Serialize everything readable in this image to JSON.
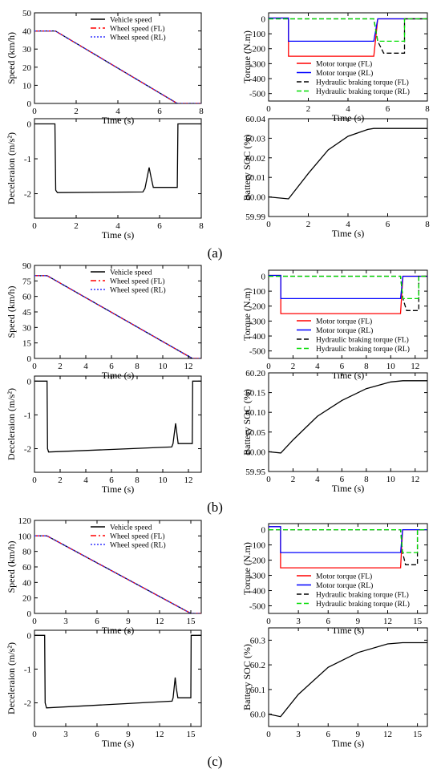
{
  "figure": {
    "panel_labels": [
      "(a)",
      "(b)",
      "(c)"
    ]
  },
  "chart_data": [
    {
      "id": "a-speed",
      "type": "line",
      "xlabel": "Time (s)",
      "ylabel": "Speed (km/h)",
      "xlim": [
        0,
        8
      ],
      "ylim": [
        0,
        50
      ],
      "xticks": [
        0,
        2,
        4,
        6,
        8
      ],
      "yticks": [
        0,
        10,
        20,
        30,
        40,
        50
      ],
      "legend_position": "top-right",
      "series": [
        {
          "name": "Vehicle speed",
          "color": "#000000",
          "dash": "solid",
          "x": [
            0,
            1.0,
            6.85,
            8
          ],
          "y": [
            40,
            40,
            0,
            0
          ]
        },
        {
          "name": "Wheel speed (FL)",
          "color": "#ff0000",
          "dash": "dashdot",
          "x": [
            0,
            1.0,
            6.85,
            8
          ],
          "y": [
            40,
            40,
            0,
            0
          ]
        },
        {
          "name": "Wheel speed (RL)",
          "color": "#3333ff",
          "dash": "dot",
          "x": [
            0,
            1.0,
            6.85,
            8
          ],
          "y": [
            40,
            40,
            0,
            0
          ]
        }
      ]
    },
    {
      "id": "a-torque",
      "type": "line",
      "xlabel": "Time (s)",
      "ylabel": "Torque (N.m)",
      "xlim": [
        0,
        8
      ],
      "ylim": [
        -550,
        40
      ],
      "xticks": [
        0,
        2,
        4,
        6,
        8
      ],
      "yticks": [
        0,
        -100,
        -200,
        -300,
        -400,
        -500
      ],
      "legend_position": "bottom-right",
      "series": [
        {
          "name": "Motor torque (FL)",
          "color": "#ff0000",
          "dash": "solid",
          "x": [
            0,
            1.0,
            1.0,
            5.3,
            5.5,
            8
          ],
          "y": [
            5,
            5,
            -250,
            -250,
            0,
            0
          ]
        },
        {
          "name": "Motor torque (RL)",
          "color": "#0000ff",
          "dash": "solid",
          "x": [
            0,
            1.0,
            1.0,
            5.3,
            5.5,
            8
          ],
          "y": [
            5,
            5,
            -150,
            -150,
            0,
            0
          ]
        },
        {
          "name": "Hydraulic braking torque (FL)",
          "color": "#000000",
          "dash": "dash",
          "x": [
            0,
            5.3,
            5.5,
            5.8,
            6.85,
            6.85,
            8
          ],
          "y": [
            0,
            0,
            -150,
            -230,
            -230,
            0,
            0
          ]
        },
        {
          "name": "Hydraulic braking torque (RL)",
          "color": "#00dd00",
          "dash": "dash",
          "x": [
            0,
            5.3,
            5.5,
            6.85,
            6.85,
            8
          ],
          "y": [
            0,
            0,
            -150,
            -150,
            0,
            0
          ]
        }
      ]
    },
    {
      "id": "a-decel",
      "type": "line",
      "xlabel": "Time (s)",
      "ylabel": "Deceleraion (m/s²)",
      "xlim": [
        0,
        8
      ],
      "ylim": [
        -2.7,
        0.15
      ],
      "xticks": [
        0,
        2,
        4,
        6,
        8
      ],
      "yticks": [
        0,
        -1,
        -2
      ],
      "series": [
        {
          "name": "",
          "color": "#000000",
          "dash": "solid",
          "x": [
            0,
            0.98,
            1.02,
            1.1,
            5.2,
            5.3,
            5.5,
            5.6,
            5.7,
            6.85,
            6.88,
            8
          ],
          "y": [
            0,
            0,
            -1.9,
            -1.97,
            -1.95,
            -1.85,
            -1.25,
            -1.55,
            -1.82,
            -1.82,
            0,
            0
          ]
        }
      ]
    },
    {
      "id": "a-soc",
      "type": "line",
      "xlabel": "Time (s)",
      "ylabel": "Battery SOC (%)",
      "xlim": [
        0,
        8
      ],
      "ylim": [
        59.99,
        60.04
      ],
      "xticks": [
        0,
        2,
        4,
        6,
        8
      ],
      "yticks": [
        59.99,
        60.0,
        60.01,
        60.02,
        60.03,
        60.04
      ],
      "series": [
        {
          "name": "",
          "color": "#000000",
          "dash": "solid",
          "x": [
            0,
            1.0,
            2,
            3,
            4,
            5,
            5.3,
            6,
            7,
            8
          ],
          "y": [
            60.0,
            59.999,
            60.012,
            60.024,
            60.031,
            60.0345,
            60.035,
            60.035,
            60.035,
            60.035
          ]
        }
      ]
    },
    {
      "id": "b-speed",
      "type": "line",
      "xlabel": "Time (s)",
      "ylabel": "Speed (km/h)",
      "xlim": [
        0,
        13
      ],
      "ylim": [
        0,
        90
      ],
      "xticks": [
        0,
        2,
        4,
        6,
        8,
        10,
        12
      ],
      "yticks": [
        0,
        15,
        30,
        45,
        60,
        75,
        90
      ],
      "legend_position": "top-right",
      "series": [
        {
          "name": "Vehicle speed",
          "color": "#000000",
          "dash": "solid",
          "x": [
            0,
            1.0,
            12.3,
            13
          ],
          "y": [
            80,
            80,
            0,
            0
          ]
        },
        {
          "name": "Wheel speed (FL)",
          "color": "#ff0000",
          "dash": "dashdot",
          "x": [
            0,
            1.0,
            12.3,
            13
          ],
          "y": [
            80,
            80,
            0,
            0
          ]
        },
        {
          "name": "Wheel speed (RL)",
          "color": "#3333ff",
          "dash": "dot",
          "x": [
            0,
            1.0,
            12.3,
            13
          ],
          "y": [
            80,
            80,
            0,
            0
          ]
        }
      ]
    },
    {
      "id": "b-torque",
      "type": "line",
      "xlabel": "Time (s)",
      "ylabel": "Torque (N.m)",
      "xlim": [
        0,
        13
      ],
      "ylim": [
        -550,
        40
      ],
      "xticks": [
        0,
        2,
        4,
        6,
        8,
        10,
        12
      ],
      "yticks": [
        0,
        -100,
        -200,
        -300,
        -400,
        -500
      ],
      "legend_position": "bottom-right",
      "series": [
        {
          "name": "Motor torque (FL)",
          "color": "#ff0000",
          "dash": "solid",
          "x": [
            0,
            1.0,
            1.0,
            10.8,
            11.0,
            13
          ],
          "y": [
            5,
            5,
            -250,
            -250,
            0,
            0
          ]
        },
        {
          "name": "Motor torque (RL)",
          "color": "#0000ff",
          "dash": "solid",
          "x": [
            0,
            1.0,
            1.0,
            10.8,
            11.0,
            13
          ],
          "y": [
            5,
            5,
            -150,
            -150,
            0,
            0
          ]
        },
        {
          "name": "Hydraulic braking torque (FL)",
          "color": "#000000",
          "dash": "dash",
          "x": [
            0,
            10.8,
            11.0,
            11.3,
            12.3,
            12.3,
            13
          ],
          "y": [
            0,
            0,
            -150,
            -230,
            -230,
            0,
            0
          ]
        },
        {
          "name": "Hydraulic braking torque (RL)",
          "color": "#00dd00",
          "dash": "dash",
          "x": [
            0,
            10.8,
            11.0,
            12.3,
            12.3,
            13
          ],
          "y": [
            0,
            0,
            -150,
            -150,
            0,
            0
          ]
        }
      ]
    },
    {
      "id": "b-decel",
      "type": "line",
      "xlabel": "Time (s)",
      "ylabel": "Deceleraion (m/s²)",
      "xlim": [
        0,
        13
      ],
      "ylim": [
        -2.7,
        0.15
      ],
      "xticks": [
        0,
        2,
        4,
        6,
        8,
        10,
        12
      ],
      "yticks": [
        0,
        -1,
        -2
      ],
      "series": [
        {
          "name": "",
          "color": "#000000",
          "dash": "solid",
          "x": [
            0,
            0.98,
            1.02,
            1.1,
            10.7,
            10.8,
            11.0,
            11.1,
            11.2,
            12.3,
            12.33,
            13
          ],
          "y": [
            0,
            0,
            -2.0,
            -2.1,
            -1.95,
            -1.85,
            -1.25,
            -1.55,
            -1.85,
            -1.85,
            0,
            0
          ]
        }
      ]
    },
    {
      "id": "b-soc",
      "type": "line",
      "xlabel": "Time (s)",
      "ylabel": "Battery SOC (%)",
      "xlim": [
        0,
        13
      ],
      "ylim": [
        59.95,
        60.2
      ],
      "xticks": [
        0,
        2,
        4,
        6,
        8,
        10,
        12
      ],
      "yticks": [
        59.95,
        60.0,
        60.05,
        60.1,
        60.15,
        60.2
      ],
      "series": [
        {
          "name": "",
          "color": "#000000",
          "dash": "solid",
          "x": [
            0,
            1.0,
            2,
            4,
            6,
            8,
            10,
            11,
            12,
            13
          ],
          "y": [
            60.0,
            59.997,
            60.03,
            60.09,
            60.13,
            60.16,
            60.177,
            60.18,
            60.18,
            60.18
          ]
        }
      ]
    },
    {
      "id": "c-speed",
      "type": "line",
      "xlabel": "Time (s)",
      "ylabel": "Speed (km/h)",
      "xlim": [
        0,
        16
      ],
      "ylim": [
        0,
        120
      ],
      "xticks": [
        0,
        3,
        6,
        9,
        12,
        15
      ],
      "yticks": [
        0,
        20,
        40,
        60,
        80,
        100,
        120
      ],
      "legend_position": "top-right",
      "series": [
        {
          "name": "Vehicle speed",
          "color": "#000000",
          "dash": "solid",
          "x": [
            0,
            1.2,
            15.0,
            16
          ],
          "y": [
            100,
            100,
            0,
            0
          ]
        },
        {
          "name": "Wheel speed (FL)",
          "color": "#ff0000",
          "dash": "dashdot",
          "x": [
            0,
            1.2,
            15.0,
            16
          ],
          "y": [
            100,
            100,
            0,
            0
          ]
        },
        {
          "name": "Wheel speed (RL)",
          "color": "#3333ff",
          "dash": "dot",
          "x": [
            0,
            1.2,
            15.0,
            16
          ],
          "y": [
            100,
            100,
            0,
            0
          ]
        }
      ]
    },
    {
      "id": "c-torque",
      "type": "line",
      "xlabel": "Time (s)",
      "ylabel": "Torque (N.m)",
      "xlim": [
        0,
        16
      ],
      "ylim": [
        -550,
        40
      ],
      "xticks": [
        0,
        3,
        6,
        9,
        12,
        15
      ],
      "yticks": [
        0,
        -100,
        -200,
        -300,
        -400,
        -500
      ],
      "legend_position": "bottom-right",
      "series": [
        {
          "name": "Motor torque (FL)",
          "color": "#ff0000",
          "dash": "solid",
          "x": [
            0,
            1.2,
            1.2,
            13.3,
            13.5,
            16
          ],
          "y": [
            20,
            20,
            -250,
            -250,
            0,
            0
          ]
        },
        {
          "name": "Motor torque (RL)",
          "color": "#0000ff",
          "dash": "solid",
          "x": [
            0,
            1.2,
            1.2,
            13.3,
            13.5,
            16
          ],
          "y": [
            20,
            20,
            -150,
            -150,
            0,
            0
          ]
        },
        {
          "name": "Hydraulic braking torque (FL)",
          "color": "#000000",
          "dash": "dash",
          "x": [
            0,
            13.3,
            13.5,
            13.8,
            15.0,
            15.0,
            16
          ],
          "y": [
            0,
            0,
            -150,
            -230,
            -230,
            0,
            0
          ]
        },
        {
          "name": "Hydraulic braking torque (RL)",
          "color": "#00dd00",
          "dash": "dash",
          "x": [
            0,
            13.3,
            13.5,
            15.0,
            15.0,
            16
          ],
          "y": [
            0,
            0,
            -150,
            -150,
            0,
            0
          ]
        }
      ]
    },
    {
      "id": "c-decel",
      "type": "line",
      "xlabel": "Time (s)",
      "ylabel": "Deceleraion (m/s²)",
      "xlim": [
        0,
        16
      ],
      "ylim": [
        -2.7,
        0.15
      ],
      "xticks": [
        0,
        3,
        6,
        9,
        12,
        15
      ],
      "yticks": [
        0,
        -1,
        -2
      ],
      "series": [
        {
          "name": "",
          "color": "#000000",
          "dash": "solid",
          "x": [
            0,
            0.98,
            1.02,
            1.15,
            13.2,
            13.3,
            13.5,
            13.6,
            13.75,
            15.0,
            15.03,
            16
          ],
          "y": [
            0,
            0,
            -2.0,
            -2.15,
            -1.95,
            -1.85,
            -1.25,
            -1.55,
            -1.85,
            -1.85,
            0,
            0
          ]
        }
      ]
    },
    {
      "id": "c-soc",
      "type": "line",
      "xlabel": "Time (s)",
      "ylabel": "Battery SOC (%)",
      "xlim": [
        0,
        16
      ],
      "ylim": [
        59.95,
        60.35
      ],
      "xticks": [
        0,
        3,
        6,
        9,
        12,
        15
      ],
      "yticks": [
        60.0,
        60.1,
        60.2,
        60.3
      ],
      "yticklabels": [
        "60.0",
        "60.1",
        "60.2",
        "60.3"
      ],
      "series": [
        {
          "name": "",
          "color": "#000000",
          "dash": "solid",
          "x": [
            0,
            1.2,
            3,
            6,
            9,
            12,
            13.5,
            16
          ],
          "y": [
            60.0,
            59.99,
            60.08,
            60.19,
            60.25,
            60.285,
            60.29,
            60.29
          ]
        }
      ]
    }
  ]
}
